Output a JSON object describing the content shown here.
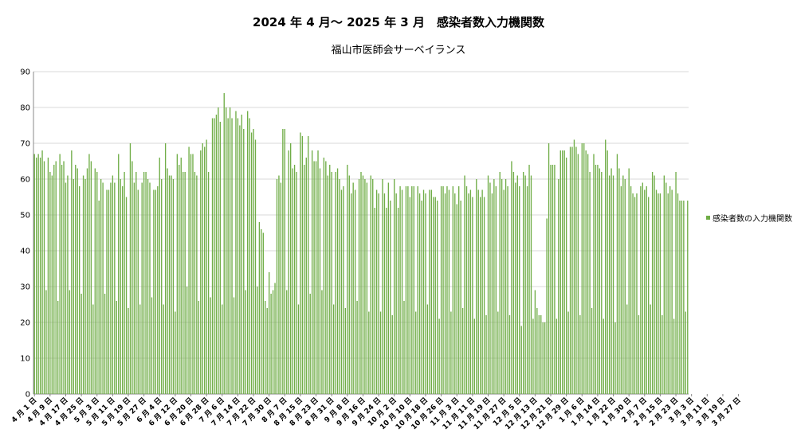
{
  "chart_data": {
    "type": "bar",
    "title": "2024 年 4 月～ 2025 年 3 月　感染者数入力機関数",
    "subtitle": "福山市医師会サーベイランス",
    "ylim": [
      0,
      90
    ],
    "ytick_step": 10,
    "grid": true,
    "legend_position": "right",
    "series": [
      {
        "name": "感染者数の入力機関数",
        "color": "#70ad47",
        "values": [
          67,
          66,
          67,
          66,
          68,
          65,
          29,
          66,
          62,
          61,
          64,
          65,
          26,
          67,
          64,
          65,
          59,
          61,
          29,
          68,
          60,
          64,
          63,
          58,
          28,
          61,
          60,
          63,
          67,
          65,
          25,
          63,
          62,
          54,
          60,
          59,
          28,
          57,
          57,
          59,
          61,
          59,
          26,
          67,
          60,
          58,
          62,
          55,
          24,
          70,
          65,
          59,
          62,
          57,
          25,
          59,
          62,
          62,
          60,
          59,
          27,
          57,
          57,
          58,
          66,
          60,
          25,
          70,
          63,
          61,
          61,
          60,
          23,
          67,
          64,
          66,
          62,
          62,
          30,
          69,
          67,
          67,
          62,
          61,
          26,
          68,
          70,
          69,
          71,
          62,
          27,
          77,
          77,
          78,
          80,
          76,
          25,
          84,
          80,
          77,
          80,
          77,
          27,
          79,
          77,
          75,
          78,
          74,
          29,
          79,
          77,
          73,
          74,
          71,
          30,
          48,
          46,
          45,
          26,
          24,
          34,
          28,
          29,
          31,
          60,
          61,
          59,
          74,
          74,
          29,
          68,
          70,
          63,
          64,
          62,
          25,
          73,
          72,
          64,
          66,
          72,
          28,
          68,
          65,
          65,
          68,
          63,
          29,
          66,
          65,
          61,
          64,
          62,
          25,
          62,
          63,
          60,
          57,
          58,
          24,
          64,
          61,
          56,
          59,
          57,
          26,
          60,
          62,
          61,
          60,
          59,
          23,
          61,
          60,
          52,
          57,
          56,
          23,
          60,
          56,
          52,
          59,
          54,
          22,
          60,
          56,
          52,
          58,
          57,
          26,
          58,
          58,
          55,
          58,
          58,
          23,
          58,
          56,
          54,
          57,
          56,
          25,
          57,
          57,
          55,
          55,
          54,
          21,
          58,
          58,
          56,
          58,
          57,
          23,
          58,
          56,
          53,
          58,
          54,
          24,
          61,
          58,
          56,
          57,
          55,
          21,
          60,
          57,
          55,
          57,
          55,
          22,
          61,
          59,
          56,
          60,
          58,
          23,
          62,
          60,
          57,
          60,
          58,
          22,
          65,
          62,
          59,
          61,
          58,
          19,
          62,
          61,
          58,
          64,
          61,
          21,
          29,
          24,
          22,
          22,
          20,
          20,
          49,
          70,
          64,
          64,
          64,
          21,
          60,
          68,
          68,
          68,
          66,
          23,
          69,
          69,
          71,
          69,
          67,
          22,
          70,
          70,
          68,
          67,
          62,
          24,
          67,
          64,
          64,
          63,
          62,
          21,
          71,
          68,
          61,
          63,
          61,
          20,
          67,
          63,
          58,
          61,
          60,
          25,
          63,
          58,
          56,
          55,
          56,
          22,
          58,
          59,
          57,
          58,
          55,
          25,
          62,
          61,
          57,
          56,
          56,
          22,
          61,
          59,
          56,
          58,
          57,
          21,
          62,
          56,
          54,
          54,
          54,
          23,
          54
        ]
      }
    ],
    "x_labels": [
      "4 月 1 日",
      "4 月 9 日",
      "4 月 17 日",
      "4 月 25 日",
      "5 月 3 日",
      "5 月 11 日",
      "5 月 19 日",
      "5 月 27 日",
      "6 月 4 日",
      "6 月 12 日",
      "6 月 20 日",
      "6 月 28 日",
      "7 月 6 日",
      "7 月 14 日",
      "7 月 22 日",
      "7 月 30 日",
      "8 月 7 日",
      "8 月 15 日",
      "8 月 23 日",
      "8 月 31 日",
      "9 月 8 日",
      "9 月 16 日",
      "9 月 24 日",
      "10 月 2 日",
      "10 月 10 日",
      "10 月 18 日",
      "10 月 26 日",
      "11 月 3 日",
      "11 月 11 日",
      "11 月 19 日",
      "11 月 27 日",
      "12 月 5 日",
      "12 月 13 日",
      "12 月 21 日",
      "12 月 29 日",
      "1 月 6 日",
      "1 月 14 日",
      "1 月 22 日",
      "1 月 30 日",
      "2 月 7 日",
      "2 月 15 日",
      "2 月 23 日",
      "3 月 3 日",
      "3 月 11 日",
      "3 月 19 日",
      "3 月 27 日"
    ]
  }
}
